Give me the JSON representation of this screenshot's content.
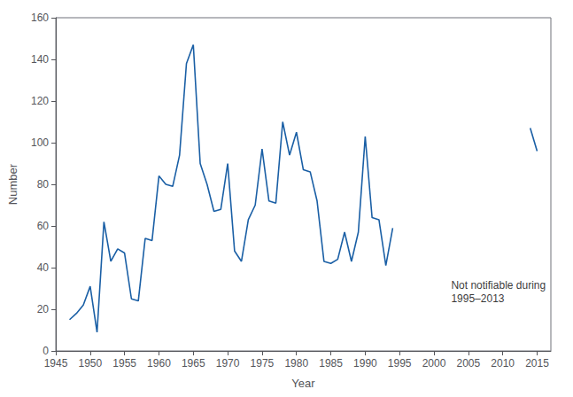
{
  "chart_data": {
    "type": "line",
    "xlabel": "Year",
    "ylabel": "Number",
    "series": [
      {
        "color": "#1a5fa5",
        "x": [
          1947,
          1948,
          1949,
          1950,
          1951,
          1952,
          1953,
          1954,
          1955,
          1956,
          1957,
          1958,
          1959,
          1960,
          1961,
          1962,
          1963,
          1964,
          1965,
          1966,
          1967,
          1968,
          1969,
          1970,
          1971,
          1972,
          1973,
          1974,
          1975,
          1976,
          1977,
          1978,
          1979,
          1980,
          1981,
          1982,
          1983,
          1984,
          1985,
          1986,
          1987,
          1988,
          1989,
          1990,
          1991,
          1992,
          1993,
          1994
        ],
        "values": [
          15,
          18,
          22,
          31,
          9,
          62,
          43,
          49,
          47,
          25,
          24,
          54,
          53,
          84,
          80,
          79,
          94,
          138,
          147,
          90,
          80,
          67,
          68,
          90,
          48,
          43,
          63,
          70,
          97,
          72,
          71,
          110,
          94,
          105,
          87,
          86,
          72,
          43,
          42,
          44,
          57,
          43,
          57,
          103,
          64,
          63,
          41,
          59
        ]
      },
      {
        "color": "#1a5fa5",
        "x": [
          2014,
          2015
        ],
        "values": [
          107,
          96
        ]
      }
    ],
    "annotations": [
      {
        "text": "Not notifiable during\n1995–2013",
        "x": 2002.5,
        "y": 22
      }
    ],
    "xlim": [
      1945,
      2017
    ],
    "ylim": [
      0,
      160
    ],
    "xticks": [
      1945,
      1950,
      1955,
      1960,
      1965,
      1970,
      1975,
      1980,
      1985,
      1990,
      1995,
      2000,
      2005,
      2010,
      2015
    ],
    "yticks": [
      0,
      20,
      40,
      60,
      80,
      100,
      120,
      140,
      160
    ],
    "grid": false
  }
}
